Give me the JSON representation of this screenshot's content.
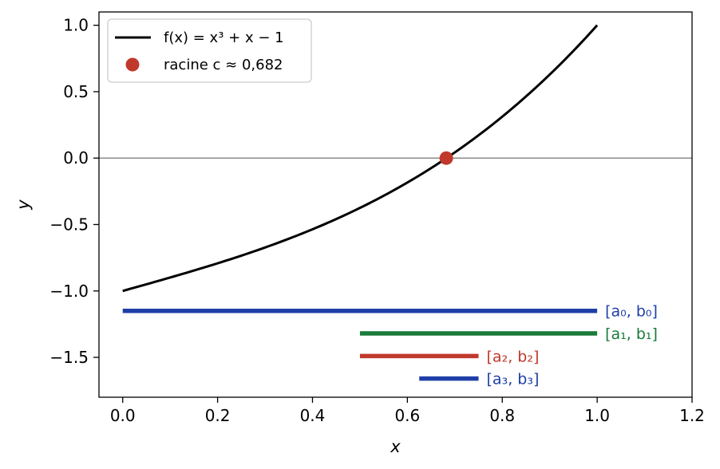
{
  "chart_data": {
    "type": "line",
    "title": "",
    "xlabel": "x",
    "ylabel": "y",
    "xlim": [
      -0.05,
      1.2
    ],
    "ylim": [
      -1.8,
      1.1
    ],
    "x_ticks": [
      0.0,
      0.2,
      0.4,
      0.6,
      0.8,
      1.0,
      1.2
    ],
    "x_tick_labels": [
      "0.0",
      "0.2",
      "0.4",
      "0.6",
      "0.8",
      "1.0",
      "1.2"
    ],
    "y_ticks": [
      1.0,
      0.5,
      0.0,
      -0.5,
      -1.0,
      -1.5
    ],
    "y_tick_labels": [
      "1.0",
      "0.5",
      "0.0",
      "−0.5",
      "−1.0",
      "−1.5"
    ],
    "grid": false,
    "reference_line": {
      "y": 0.0,
      "color": "#808080"
    },
    "series": [
      {
        "name": "f(x) = x³ + x − 1",
        "kind": "line",
        "color": "#000000",
        "function": "x^3 + x - 1",
        "x_range": [
          0.0,
          1.0
        ]
      },
      {
        "name": "racine c ≈ 0,682",
        "kind": "point",
        "color": "#c0392b",
        "x": 0.682,
        "y": 0.0
      }
    ],
    "intervals": [
      {
        "label": "[a₀, b₀]",
        "a": 0.0,
        "b": 1.0,
        "y": -1.15,
        "color": "#1f3fa8"
      },
      {
        "label": "[a₁, b₁]",
        "a": 0.5,
        "b": 1.0,
        "y": -1.32,
        "color": "#1a7a3a"
      },
      {
        "label": "[a₂, b₂]",
        "a": 0.5,
        "b": 0.75,
        "y": -1.49,
        "color": "#c0392b"
      },
      {
        "label": "[a₃, b₃]",
        "a": 0.625,
        "b": 0.75,
        "y": -1.66,
        "color": "#1f3fa8"
      }
    ],
    "legend": {
      "placement": "top-left",
      "entries": [
        {
          "label": "f(x) = x³ + x − 1",
          "marker": "line",
          "color": "#000000"
        },
        {
          "label": "racine c ≈ 0,682",
          "marker": "dot",
          "color": "#c0392b"
        }
      ]
    }
  }
}
